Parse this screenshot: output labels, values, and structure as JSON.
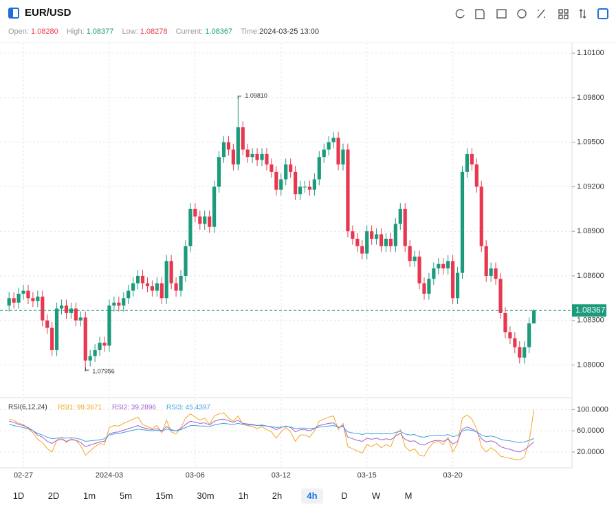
{
  "header": {
    "symbol": "EUR/USD",
    "open_label": "Open:",
    "open": "1.08280",
    "high_label": "High:",
    "high": "1.08377",
    "low_label": "Low:",
    "low": "1.08278",
    "current_label": "Current:",
    "current": "1.08367",
    "time_label": "Time:",
    "time": "2024-03-25 13:00"
  },
  "timeframes": [
    "1D",
    "2D",
    "1m",
    "5m",
    "15m",
    "30m",
    "1h",
    "2h",
    "4h",
    "D",
    "W",
    "M"
  ],
  "active_timeframe": "4h",
  "chart_data": [
    {
      "type": "candlestick",
      "categories": [
        null,
        null,
        null,
        "02-27",
        null,
        null,
        null,
        null,
        null,
        null,
        null,
        null,
        null,
        null,
        null,
        null,
        null,
        null,
        null,
        null,
        null,
        "2024-03",
        null,
        null,
        null,
        null,
        null,
        null,
        null,
        null,
        null,
        null,
        null,
        null,
        null,
        null,
        null,
        null,
        null,
        "03-06",
        null,
        null,
        null,
        null,
        null,
        null,
        null,
        null,
        null,
        null,
        null,
        null,
        null,
        null,
        null,
        null,
        null,
        "03-12",
        null,
        null,
        null,
        null,
        null,
        null,
        null,
        null,
        null,
        null,
        null,
        null,
        null,
        null,
        null,
        null,
        null,
        "03-15",
        null,
        null,
        null,
        null,
        null,
        null,
        null,
        null,
        null,
        null,
        null,
        null,
        null,
        null,
        null,
        null,
        null,
        "03-20",
        null,
        null,
        null,
        null,
        null,
        null,
        null,
        null,
        null,
        null,
        null,
        null,
        null,
        null,
        null,
        null,
        null
      ],
      "open": [
        1.084,
        1.0845,
        1.0842,
        1.0848,
        1.085,
        1.0845,
        1.0843,
        1.0846,
        1.083,
        1.0825,
        1.081,
        1.0838,
        1.084,
        1.0835,
        1.0838,
        1.083,
        1.0832,
        1.0803,
        1.0806,
        1.081,
        1.0815,
        1.0813,
        1.084,
        1.0842,
        1.084,
        1.0845,
        1.085,
        1.0855,
        1.086,
        1.0855,
        1.0853,
        1.085,
        1.0855,
        1.0845,
        1.087,
        1.0855,
        1.085,
        1.086,
        1.088,
        1.0905,
        1.09,
        1.0895,
        1.09,
        1.0893,
        1.092,
        1.094,
        1.095,
        1.0945,
        1.0935,
        1.096,
        1.0945,
        1.094,
        1.0942,
        1.0938,
        1.0942,
        1.0935,
        1.093,
        1.0918,
        1.0925,
        1.0935,
        1.093,
        1.0915,
        1.092,
        1.092,
        1.0918,
        1.0925,
        1.094,
        1.0945,
        1.095,
        1.0953,
        1.0935,
        1.0945,
        1.089,
        1.0885,
        1.088,
        1.0875,
        1.089,
        1.0885,
        1.0888,
        1.088,
        1.0885,
        1.088,
        1.0895,
        1.0905,
        1.088,
        1.087,
        1.0873,
        1.0855,
        1.0848,
        1.0858,
        1.0865,
        1.0868,
        1.0865,
        1.087,
        1.0845,
        1.0862,
        1.093,
        1.0942,
        1.0935,
        1.092,
        1.088,
        1.086,
        1.0865,
        1.0858,
        1.0835,
        1.0822,
        1.0818,
        1.0812,
        1.0805,
        1.0812,
        1.0828
      ],
      "high": [
        1.0849,
        1.0849,
        1.0852,
        1.0854,
        1.0854,
        1.0849,
        1.085,
        1.085,
        1.0834,
        1.0829,
        1.0842,
        1.0844,
        1.0844,
        1.0842,
        1.0842,
        1.0836,
        1.0836,
        1.081,
        1.0814,
        1.0819,
        1.0819,
        1.0844,
        1.0846,
        1.0846,
        1.0849,
        1.0854,
        1.0859,
        1.0864,
        1.0864,
        1.0859,
        1.0857,
        1.0859,
        1.0859,
        1.0874,
        1.0874,
        1.0859,
        1.0864,
        1.0884,
        1.0909,
        1.0909,
        1.0904,
        1.0904,
        1.0904,
        1.0924,
        1.0944,
        1.0954,
        1.0954,
        1.0949,
        1.0981,
        1.0964,
        1.0949,
        1.0946,
        1.0946,
        1.0946,
        1.0946,
        1.0939,
        1.0934,
        1.0929,
        1.0939,
        1.0939,
        1.0934,
        1.0924,
        1.0924,
        1.0924,
        1.0929,
        1.0944,
        1.0949,
        1.0954,
        1.0957,
        1.0957,
        1.0949,
        1.0949,
        1.0894,
        1.0889,
        1.0884,
        1.0894,
        1.0894,
        1.0892,
        1.0892,
        1.0889,
        1.0889,
        1.0899,
        1.0909,
        1.0909,
        1.0884,
        1.0877,
        1.0877,
        1.0859,
        1.0862,
        1.0869,
        1.0872,
        1.0872,
        1.0874,
        1.0874,
        1.0866,
        1.0934,
        1.0946,
        1.0946,
        1.0939,
        1.0924,
        1.0884,
        1.0869,
        1.0869,
        1.0862,
        1.0839,
        1.0826,
        1.0822,
        1.0816,
        1.0816,
        1.0832,
        1.08377
      ],
      "low": [
        1.0836,
        1.0838,
        1.0838,
        1.0844,
        1.0841,
        1.0839,
        1.0839,
        1.0826,
        1.0821,
        1.0806,
        1.0806,
        1.0834,
        1.0831,
        1.0831,
        1.0826,
        1.0826,
        1.07956,
        1.0799,
        1.0802,
        1.0806,
        1.0809,
        1.0809,
        1.0836,
        1.0836,
        1.0836,
        1.0841,
        1.0846,
        1.0851,
        1.0851,
        1.0849,
        1.0846,
        1.0846,
        1.0841,
        1.0841,
        1.0851,
        1.0846,
        1.0846,
        1.0856,
        1.0876,
        1.0896,
        1.0891,
        1.0891,
        1.0889,
        1.0889,
        1.0916,
        1.0936,
        1.0941,
        1.0931,
        1.0931,
        1.0941,
        1.0936,
        1.0936,
        1.0934,
        1.0934,
        1.0931,
        1.0926,
        1.0914,
        1.0914,
        1.0921,
        1.0926,
        1.0911,
        1.0911,
        1.0916,
        1.0914,
        1.0914,
        1.0921,
        1.0936,
        1.0941,
        1.0946,
        1.0931,
        1.0931,
        1.0886,
        1.0881,
        1.0876,
        1.0871,
        1.0871,
        1.0881,
        1.0881,
        1.0876,
        1.0876,
        1.0876,
        1.0876,
        1.0891,
        1.0876,
        1.0866,
        1.0866,
        1.0851,
        1.0844,
        1.0844,
        1.0854,
        1.0861,
        1.0861,
        1.0861,
        1.0841,
        1.0841,
        1.0858,
        1.0926,
        1.0931,
        1.0916,
        1.0876,
        1.0856,
        1.0856,
        1.0854,
        1.0831,
        1.0818,
        1.0814,
        1.0808,
        1.0801,
        1.0801,
        1.0808,
        1.08278
      ],
      "close": [
        1.0845,
        1.0842,
        1.0848,
        1.085,
        1.0845,
        1.0843,
        1.0846,
        1.083,
        1.0825,
        1.081,
        1.0838,
        1.084,
        1.0835,
        1.0838,
        1.083,
        1.0832,
        1.0803,
        1.0806,
        1.081,
        1.0815,
        1.0813,
        1.084,
        1.0842,
        1.084,
        1.0845,
        1.085,
        1.0855,
        1.086,
        1.0855,
        1.0853,
        1.085,
        1.0855,
        1.0845,
        1.087,
        1.0855,
        1.085,
        1.086,
        1.088,
        1.0905,
        1.09,
        1.0895,
        1.09,
        1.0893,
        1.092,
        1.094,
        1.095,
        1.0945,
        1.0935,
        1.096,
        1.0945,
        1.094,
        1.0942,
        1.0938,
        1.0942,
        1.0935,
        1.093,
        1.0918,
        1.0925,
        1.0935,
        1.093,
        1.0915,
        1.092,
        1.092,
        1.0918,
        1.0925,
        1.094,
        1.0945,
        1.095,
        1.0953,
        1.0935,
        1.0945,
        1.089,
        1.0885,
        1.088,
        1.0875,
        1.089,
        1.0885,
        1.0888,
        1.088,
        1.0885,
        1.088,
        1.0895,
        1.0905,
        1.088,
        1.087,
        1.0873,
        1.0855,
        1.0848,
        1.0858,
        1.0865,
        1.0868,
        1.0865,
        1.087,
        1.0845,
        1.0862,
        1.093,
        1.0942,
        1.0935,
        1.092,
        1.088,
        1.086,
        1.0865,
        1.0858,
        1.0835,
        1.0822,
        1.0818,
        1.0812,
        1.0805,
        1.0812,
        1.0828,
        1.08367
      ],
      "up_color": "#1b9a7c",
      "down_color": "#e8384f",
      "ylim": [
        1.0778,
        1.1017
      ],
      "yticks": [
        {
          "value": 1.101,
          "label": "1.10100"
        },
        {
          "value": 1.098,
          "label": "1.09800"
        },
        {
          "value": 1.095,
          "label": "1.09500"
        },
        {
          "value": 1.092,
          "label": "1.09200"
        },
        {
          "value": 1.089,
          "label": "1.08900"
        },
        {
          "value": 1.086,
          "label": "1.08600"
        },
        {
          "value": 1.083,
          "label": "1.08300"
        },
        {
          "value": 1.08,
          "label": "1.08000"
        }
      ],
      "annotations": {
        "max": {
          "value": 1.0981,
          "label": "1.09810"
        },
        "min": {
          "value": 1.07956,
          "label": "1.07956"
        }
      },
      "last_price": {
        "value": 1.08367,
        "label": "1.08367"
      },
      "grid": true
    },
    {
      "type": "line",
      "title": "RSI(6,12,24)",
      "series": [
        {
          "name": "RSI1:",
          "color": "#f5a623",
          "values": [
            82,
            80,
            74,
            72,
            64,
            56,
            44,
            38,
            26,
            20,
            42,
            48,
            38,
            45,
            42,
            32,
            14,
            22,
            30,
            36,
            34,
            66,
            70,
            69,
            74,
            78,
            82,
            86,
            72,
            68,
            64,
            70,
            56,
            80,
            58,
            54,
            66,
            84,
            92,
            86,
            80,
            84,
            72,
            88,
            92,
            94,
            84,
            78,
            88,
            72,
            70,
            68,
            64,
            68,
            62,
            58,
            46,
            58,
            66,
            58,
            40,
            52,
            52,
            48,
            60,
            78,
            82,
            86,
            88,
            62,
            74,
            30,
            26,
            22,
            18,
            34,
            30,
            36,
            28,
            34,
            30,
            52,
            62,
            30,
            22,
            26,
            14,
            12,
            28,
            38,
            40,
            34,
            48,
            20,
            36,
            84,
            90,
            82,
            64,
            30,
            20,
            28,
            22,
            12,
            10,
            8,
            6,
            5,
            10,
            40,
            99.3671
          ]
        },
        {
          "name": "RSI2:",
          "color": "#a35fd0",
          "values": [
            78,
            76,
            72,
            70,
            66,
            60,
            52,
            48,
            40,
            36,
            42,
            44,
            40,
            43,
            42,
            38,
            30,
            33,
            36,
            39,
            40,
            54,
            57,
            58,
            61,
            64,
            67,
            70,
            66,
            64,
            62,
            64,
            60,
            68,
            62,
            60,
            64,
            72,
            78,
            76,
            74,
            75,
            71,
            78,
            81,
            82,
            79,
            76,
            80,
            74,
            73,
            72,
            70,
            71,
            69,
            67,
            62,
            66,
            69,
            66,
            58,
            62,
            62,
            60,
            64,
            70,
            72,
            74,
            75,
            66,
            70,
            48,
            45,
            42,
            40,
            46,
            44,
            46,
            43,
            45,
            43,
            50,
            55,
            44,
            40,
            41,
            35,
            33,
            38,
            41,
            42,
            40,
            44,
            35,
            40,
            63,
            67,
            64,
            58,
            45,
            39,
            41,
            38,
            30,
            27,
            25,
            22,
            20,
            24,
            31,
            39.2896
          ]
        },
        {
          "name": "RSI3:",
          "color": "#3fa2dc",
          "values": [
            72,
            70,
            68,
            66,
            64,
            60,
            55,
            52,
            48,
            45,
            46,
            47,
            46,
            47,
            46,
            44,
            40,
            41,
            42,
            43,
            45,
            52,
            54,
            55,
            57,
            59,
            61,
            63,
            62,
            61,
            60,
            61,
            59,
            63,
            61,
            60,
            62,
            66,
            70,
            70,
            69,
            69,
            68,
            71,
            73,
            74,
            73,
            72,
            74,
            72,
            71,
            71,
            70,
            70,
            69,
            68,
            66,
            67,
            68,
            67,
            64,
            65,
            65,
            64,
            65,
            67,
            68,
            69,
            70,
            67,
            68,
            58,
            56,
            55,
            53,
            55,
            54,
            55,
            54,
            55,
            54,
            57,
            59,
            54,
            52,
            53,
            49,
            48,
            50,
            51,
            52,
            51,
            53,
            49,
            51,
            60,
            62,
            61,
            58,
            52,
            49,
            50,
            48,
            44,
            42,
            41,
            39,
            38,
            39,
            42,
            45.4397
          ]
        }
      ],
      "ylim": [
        -10,
        120
      ],
      "yticks": [
        {
          "value": 100,
          "label": "100.0000"
        },
        {
          "value": 60,
          "label": "60.0000"
        },
        {
          "value": 20,
          "label": "20.0000"
        }
      ],
      "grid": true
    }
  ]
}
